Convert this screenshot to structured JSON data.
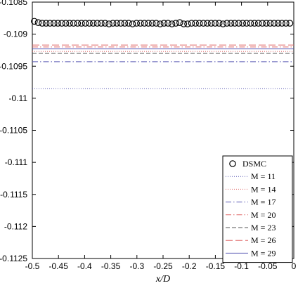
{
  "chart_data": {
    "type": "line",
    "xlabel": "x/D",
    "ylabel": "",
    "xlim": [
      -0.5,
      0
    ],
    "ylim": [
      -0.1125,
      -0.1085
    ],
    "x_ticks": [
      "-0.5",
      "-0.45",
      "-0.4",
      "-0.35",
      "-0.3",
      "-0.25",
      "-0.2",
      "-0.15",
      "-0.1",
      "-0.05",
      "0"
    ],
    "y_ticks": [
      "-0.1085",
      "-0.109",
      "-0.1095",
      "-0.11",
      "-0.1105",
      "-0.111",
      "-0.1115",
      "-0.112",
      "-0.1125"
    ],
    "grid": false,
    "legend_position": "bottom-right",
    "series": [
      {
        "name": "DSMC",
        "marker": "circle",
        "color": "#000000",
        "x": [
          -0.4962,
          -0.4887,
          -0.4812,
          -0.4737,
          -0.4662,
          -0.4586,
          -0.4511,
          -0.4436,
          -0.4361,
          -0.4286,
          -0.4211,
          -0.4135,
          -0.406,
          -0.3985,
          -0.391,
          -0.3835,
          -0.3759,
          -0.3684,
          -0.3609,
          -0.3534,
          -0.3459,
          -0.3383,
          -0.3308,
          -0.3233,
          -0.3158,
          -0.3083,
          -0.3008,
          -0.2932,
          -0.2857,
          -0.2782,
          -0.2707,
          -0.2632,
          -0.2556,
          -0.2481,
          -0.2406,
          -0.2331,
          -0.2256,
          -0.218,
          -0.2105,
          -0.203,
          -0.1955,
          -0.188,
          -0.1805,
          -0.1729,
          -0.1654,
          -0.1579,
          -0.1504,
          -0.1429,
          -0.1353,
          -0.1278,
          -0.1203,
          -0.1128,
          -0.1053,
          -0.0977,
          -0.0902,
          -0.0827,
          -0.0752,
          -0.0677,
          -0.0602,
          -0.0526,
          -0.0451,
          -0.0376,
          -0.0301,
          -0.0226,
          -0.015,
          -0.0075
        ],
        "y": [
          -0.1088,
          -0.10882,
          -0.10883,
          -0.10883,
          -0.10883,
          -0.10883,
          -0.10883,
          -0.10883,
          -0.10883,
          -0.10883,
          -0.10883,
          -0.10883,
          -0.10883,
          -0.10883,
          -0.10883,
          -0.10883,
          -0.10883,
          -0.10883,
          -0.10883,
          -0.10884,
          -0.10883,
          -0.10883,
          -0.10883,
          -0.10883,
          -0.10883,
          -0.10884,
          -0.10883,
          -0.10883,
          -0.10883,
          -0.10883,
          -0.10883,
          -0.10883,
          -0.10884,
          -0.10883,
          -0.10883,
          -0.10884,
          -0.10883,
          -0.10882,
          -0.10884,
          -0.10884,
          -0.10883,
          -0.10883,
          -0.10883,
          -0.10883,
          -0.10883,
          -0.10883,
          -0.10883,
          -0.10883,
          -0.10884,
          -0.10883,
          -0.10883,
          -0.10883,
          -0.10883,
          -0.10883,
          -0.10883,
          -0.10883,
          -0.10883,
          -0.10883,
          -0.10883,
          -0.10883,
          -0.10883,
          -0.10883,
          -0.10883,
          -0.10883,
          -0.10883,
          -0.10883
        ]
      },
      {
        "name": "M = 11",
        "style": "dotted",
        "color": "#5a5ab4",
        "x": [
          -0.5,
          0
        ],
        "y": [
          -0.10985,
          -0.10985
        ]
      },
      {
        "name": "M = 14",
        "style": "dotted",
        "color": "#e06a6a",
        "x": [
          -0.5,
          0
        ],
        "y": [
          -0.10927,
          -0.10927
        ]
      },
      {
        "name": "M = 17",
        "style": "dashdot",
        "color": "#5a5ab4",
        "x": [
          -0.5,
          0
        ],
        "y": [
          -0.10943,
          -0.10943
        ]
      },
      {
        "name": "M = 20",
        "style": "dashdot",
        "color": "#e06a6a",
        "x": [
          -0.5,
          0
        ],
        "y": [
          -0.1092,
          -0.1092
        ]
      },
      {
        "name": "M = 23",
        "style": "dashed",
        "color": "#555555",
        "x": [
          -0.5,
          0
        ],
        "y": [
          -0.1093,
          -0.1093
        ]
      },
      {
        "name": "M = 26",
        "style": "longdash",
        "color": "#e06a6a",
        "x": [
          -0.5,
          0
        ],
        "y": [
          -0.10917,
          -0.10917
        ]
      },
      {
        "name": "M = 29",
        "style": "solid",
        "color": "#5a5ab4",
        "x": [
          -0.5,
          0
        ],
        "y": [
          -0.10923,
          -0.10923
        ]
      }
    ]
  }
}
